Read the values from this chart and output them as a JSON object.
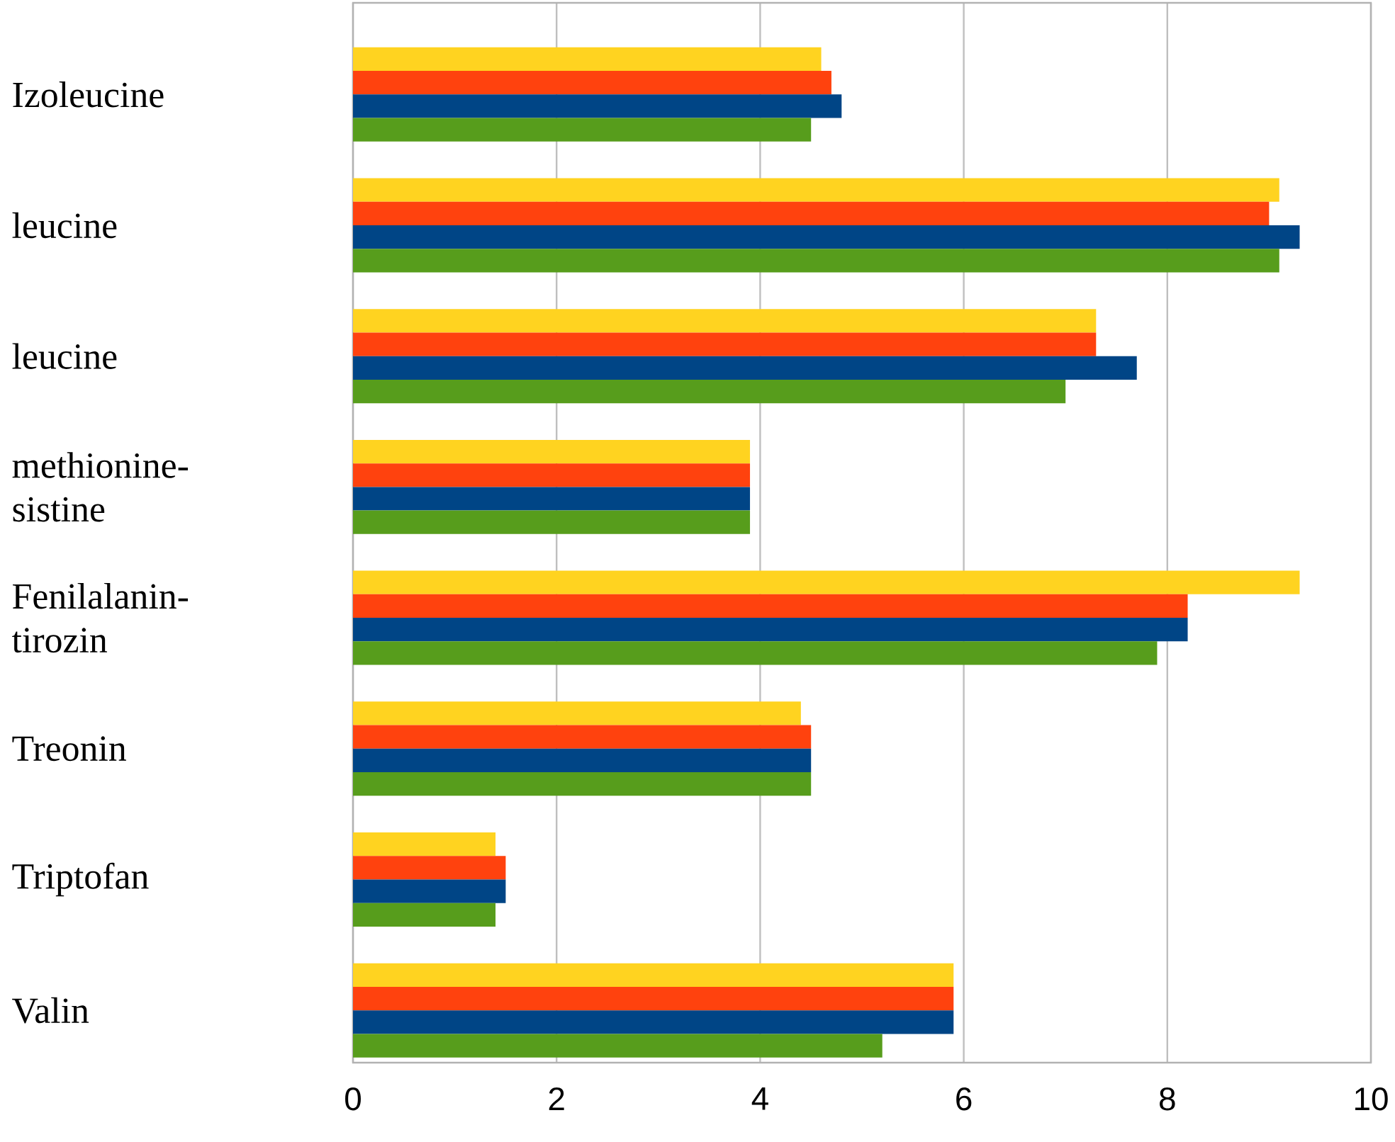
{
  "chart_data": {
    "type": "bar",
    "orientation": "horizontal",
    "categories": [
      "Izoleucine",
      "leucine",
      "leucine",
      "methionine-sistine",
      "Fenilalanin-tirozin",
      "Treonin",
      "Triptofan",
      "Valin"
    ],
    "series": [
      {
        "color": "#ffd320",
        "values": [
          4.6,
          9.1,
          7.3,
          3.9,
          9.3,
          4.4,
          1.4,
          5.9
        ]
      },
      {
        "color": "#ff420e",
        "values": [
          4.7,
          9.0,
          7.3,
          3.9,
          8.2,
          4.5,
          1.5,
          5.9
        ]
      },
      {
        "color": "#004586",
        "values": [
          4.8,
          9.3,
          7.7,
          3.9,
          8.2,
          4.5,
          1.5,
          5.9
        ]
      },
      {
        "color": "#579d1c",
        "values": [
          4.5,
          9.1,
          7.0,
          3.9,
          7.9,
          4.5,
          1.4,
          5.2
        ]
      }
    ],
    "xlim": [
      0,
      10
    ],
    "xticks": [
      0,
      2,
      4,
      6,
      8,
      10
    ],
    "grid": "x"
  }
}
